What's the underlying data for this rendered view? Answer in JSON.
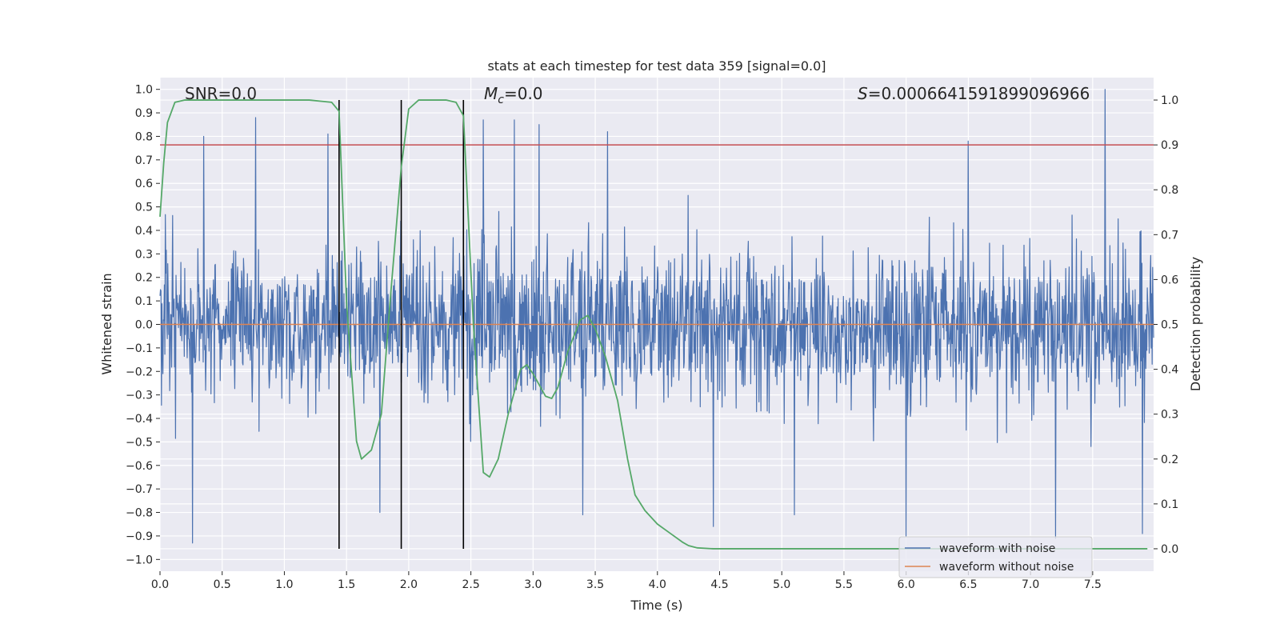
{
  "chart_data": {
    "type": "line",
    "title": "stats at each timestep for test data 359 [signal=0.0]",
    "xlabel": "Time (s)",
    "ylabel_left": "Whitened strain",
    "ylabel_right": "Detection probability",
    "xlim": [
      0.0,
      7.99
    ],
    "ylim_left": [
      -1.05,
      1.05
    ],
    "ylim_right": [
      -0.05,
      1.05
    ],
    "grid": true,
    "x_ticks": [
      "0.0",
      "0.5",
      "1.0",
      "1.5",
      "2.0",
      "2.5",
      "3.0",
      "3.5",
      "4.0",
      "4.5",
      "5.0",
      "5.5",
      "6.0",
      "6.5",
      "7.0",
      "7.5"
    ],
    "y_ticks_left": [
      "1.0",
      "0.9",
      "0.8",
      "0.7",
      "0.6",
      "0.5",
      "0.4",
      "0.3",
      "0.2",
      "0.1",
      "0.0",
      "−0.1",
      "−0.2",
      "−0.3",
      "−0.4",
      "−0.5",
      "−0.6",
      "−0.7",
      "−0.8",
      "−0.9",
      "−1.0"
    ],
    "y_ticks_right": [
      "1.0",
      "0.9",
      "0.8",
      "0.7",
      "0.6",
      "0.5",
      "0.4",
      "0.3",
      "0.2",
      "0.1",
      "0.0"
    ],
    "annotations": {
      "snr": "SNR=0.0",
      "mc_prefix": "M",
      "mc_sub": "c",
      "mc_value": "=0.0",
      "s_prefix": "S",
      "s_value": "=0.0006641591899096966"
    },
    "legend": {
      "position": "lower-right",
      "entries": [
        "waveform with noise",
        "waveform without noise"
      ]
    },
    "threshold_right": 0.9,
    "vlines_x": [
      1.44,
      1.94,
      2.44
    ],
    "series": [
      {
        "name": "waveform with noise",
        "color": "#4c72b0",
        "axis": "left",
        "noise_seed": 359,
        "noise_sigma": 0.16,
        "peaks": [
          [
            0.26,
            -0.93
          ],
          [
            0.35,
            0.8
          ],
          [
            0.77,
            0.88
          ],
          [
            1.35,
            0.81
          ],
          [
            1.77,
            -0.8
          ],
          [
            2.6,
            0.87
          ],
          [
            2.85,
            0.87
          ],
          [
            3.05,
            0.85
          ],
          [
            3.4,
            -0.81
          ],
          [
            3.6,
            0.82
          ],
          [
            4.45,
            -0.86
          ],
          [
            5.1,
            -0.81
          ],
          [
            6.0,
            -0.9
          ],
          [
            6.5,
            0.78
          ],
          [
            7.2,
            -0.91
          ],
          [
            7.6,
            1.0
          ],
          [
            7.9,
            -0.89
          ]
        ]
      },
      {
        "name": "waveform without noise",
        "color": "#dd8452",
        "axis": "left",
        "x": [
          0.0,
          7.99
        ],
        "y": [
          0.0,
          0.0
        ]
      },
      {
        "name": "detection probability",
        "color": "#55a868",
        "axis": "right",
        "x": [
          0.0,
          0.03,
          0.06,
          0.12,
          0.2,
          0.4,
          0.8,
          1.2,
          1.38,
          1.44,
          1.5,
          1.58,
          1.62,
          1.7,
          1.78,
          1.85,
          1.94,
          2.0,
          2.08,
          2.2,
          2.3,
          2.38,
          2.44,
          2.52,
          2.6,
          2.65,
          2.72,
          2.8,
          2.9,
          2.95,
          3.0,
          3.1,
          3.15,
          3.2,
          3.28,
          3.38,
          3.44,
          3.5,
          3.58,
          3.68,
          3.76,
          3.82,
          3.9,
          4.0,
          4.1,
          4.2,
          4.25,
          4.32,
          4.45,
          5.0,
          6.0,
          7.0,
          7.94
        ],
        "y": [
          0.74,
          0.86,
          0.95,
          0.995,
          1.0,
          1.0,
          1.0,
          1.0,
          0.995,
          0.975,
          0.55,
          0.24,
          0.2,
          0.22,
          0.3,
          0.55,
          0.85,
          0.98,
          1.0,
          1.0,
          1.0,
          0.995,
          0.965,
          0.5,
          0.17,
          0.16,
          0.2,
          0.3,
          0.4,
          0.41,
          0.39,
          0.34,
          0.335,
          0.36,
          0.44,
          0.51,
          0.52,
          0.49,
          0.43,
          0.33,
          0.2,
          0.12,
          0.085,
          0.055,
          0.035,
          0.015,
          0.007,
          0.002,
          0.0,
          0.0,
          0.0,
          0.0,
          0.0
        ]
      }
    ]
  }
}
